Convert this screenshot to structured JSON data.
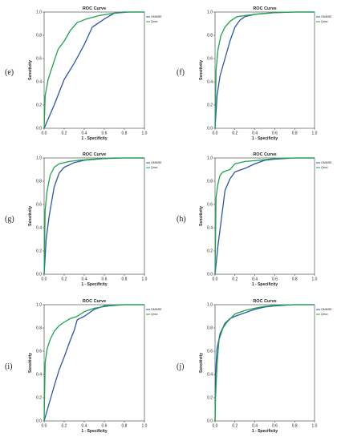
{
  "colors": {
    "series_1": "#2a56a8",
    "series_2": "#1aa34a",
    "axis": "#333333"
  },
  "chart_data": [
    {
      "panel": "(e)",
      "type": "line",
      "title": "ROC Curve",
      "xlabel": "1 - Specificity",
      "ylabel": "Sensitivity",
      "xlim": [
        0,
        1
      ],
      "ylim": [
        0,
        1
      ],
      "grid": false,
      "legend": "top-right",
      "xticks": [
        "0.0",
        "0.2",
        "0.4",
        "0.6",
        "0.8",
        "1.0"
      ],
      "yticks": [
        "0.0",
        "0.2",
        "0.4",
        "0.6",
        "0.8",
        "1.0"
      ],
      "series": [
        {
          "name": "GMMSE",
          "color": "#2a56a8",
          "points": [
            [
              0,
              0
            ],
            [
              0.1,
              0.2
            ],
            [
              0.2,
              0.42
            ],
            [
              0.3,
              0.56
            ],
            [
              0.4,
              0.72
            ],
            [
              0.48,
              0.87
            ],
            [
              0.6,
              0.94
            ],
            [
              0.7,
              0.99
            ],
            [
              0.8,
              1.0
            ],
            [
              1,
              1
            ]
          ]
        },
        {
          "name": "Qmci",
          "color": "#1aa34a",
          "points": [
            [
              0,
              0
            ],
            [
              0.01,
              0.28
            ],
            [
              0.04,
              0.42
            ],
            [
              0.07,
              0.5
            ],
            [
              0.1,
              0.58
            ],
            [
              0.14,
              0.68
            ],
            [
              0.2,
              0.75
            ],
            [
              0.26,
              0.84
            ],
            [
              0.33,
              0.91
            ],
            [
              0.42,
              0.94
            ],
            [
              0.55,
              0.97
            ],
            [
              0.7,
              0.99
            ],
            [
              0.85,
              1.0
            ],
            [
              1,
              1
            ]
          ]
        }
      ]
    },
    {
      "panel": "(f)",
      "type": "line",
      "title": "ROC Curve",
      "xlabel": "1 - Specificity",
      "ylabel": "Sensitivity",
      "xlim": [
        0,
        1
      ],
      "ylim": [
        0,
        1
      ],
      "grid": false,
      "legend": "top-right",
      "xticks": [
        "0.0",
        "0.2",
        "0.4",
        "0.6",
        "0.8",
        "1.0"
      ],
      "yticks": [
        "0.0",
        "0.2",
        "0.4",
        "0.6",
        "0.8",
        "1.0"
      ],
      "series": [
        {
          "name": "GMMSE",
          "color": "#2a56a8",
          "points": [
            [
              0,
              0
            ],
            [
              0.02,
              0.28
            ],
            [
              0.05,
              0.45
            ],
            [
              0.1,
              0.6
            ],
            [
              0.15,
              0.75
            ],
            [
              0.2,
              0.87
            ],
            [
              0.25,
              0.93
            ],
            [
              0.3,
              0.96
            ],
            [
              0.4,
              0.98
            ],
            [
              0.6,
              0.995
            ],
            [
              0.8,
              1.0
            ],
            [
              1,
              1
            ]
          ]
        },
        {
          "name": "Qmci",
          "color": "#1aa34a",
          "points": [
            [
              0,
              0
            ],
            [
              0.01,
              0.5
            ],
            [
              0.03,
              0.68
            ],
            [
              0.06,
              0.8
            ],
            [
              0.1,
              0.87
            ],
            [
              0.15,
              0.92
            ],
            [
              0.22,
              0.96
            ],
            [
              0.3,
              0.97
            ],
            [
              0.45,
              0.985
            ],
            [
              0.6,
              0.995
            ],
            [
              0.8,
              1.0
            ],
            [
              1,
              1
            ]
          ]
        }
      ]
    },
    {
      "panel": "(g)",
      "type": "line",
      "title": "ROC Curve",
      "xlabel": "1 - Specificity",
      "ylabel": "Sensitivity",
      "xlim": [
        0,
        1
      ],
      "ylim": [
        0,
        1
      ],
      "grid": false,
      "legend": "top-right",
      "xticks": [
        "0.0",
        "0.2",
        "0.4",
        "0.6",
        "0.8",
        "1.0"
      ],
      "yticks": [
        "0.0",
        "0.2",
        "0.4",
        "0.6",
        "0.8",
        "1.0"
      ],
      "series": [
        {
          "name": "GMMSE",
          "color": "#2a56a8",
          "points": [
            [
              0,
              0
            ],
            [
              0.02,
              0.3
            ],
            [
              0.05,
              0.5
            ],
            [
              0.1,
              0.75
            ],
            [
              0.15,
              0.87
            ],
            [
              0.2,
              0.92
            ],
            [
              0.3,
              0.96
            ],
            [
              0.4,
              0.98
            ],
            [
              0.6,
              0.995
            ],
            [
              0.8,
              1.0
            ],
            [
              1,
              1
            ]
          ]
        },
        {
          "name": "Qmci",
          "color": "#1aa34a",
          "points": [
            [
              0,
              0
            ],
            [
              0.01,
              0.55
            ],
            [
              0.03,
              0.72
            ],
            [
              0.06,
              0.85
            ],
            [
              0.1,
              0.92
            ],
            [
              0.15,
              0.95
            ],
            [
              0.25,
              0.97
            ],
            [
              0.35,
              0.98
            ],
            [
              0.5,
              0.99
            ],
            [
              0.7,
              1.0
            ],
            [
              1,
              1
            ]
          ]
        }
      ]
    },
    {
      "panel": "(h)",
      "type": "line",
      "title": "ROC Curve",
      "xlabel": "1 - Specificity",
      "ylabel": "Sensitivity",
      "xlim": [
        0,
        1
      ],
      "ylim": [
        0,
        1
      ],
      "grid": false,
      "legend": "top-right",
      "xticks": [
        "0.0",
        "0.2",
        "0.4",
        "0.6",
        "0.8",
        "1.0"
      ],
      "yticks": [
        "0.0",
        "0.2",
        "0.4",
        "0.6",
        "0.8",
        "1.0"
      ],
      "series": [
        {
          "name": "GMMSE",
          "color": "#2a56a8",
          "points": [
            [
              0,
              0
            ],
            [
              0.03,
              0.25
            ],
            [
              0.06,
              0.45
            ],
            [
              0.1,
              0.72
            ],
            [
              0.15,
              0.82
            ],
            [
              0.2,
              0.88
            ],
            [
              0.3,
              0.91
            ],
            [
              0.4,
              0.95
            ],
            [
              0.5,
              0.98
            ],
            [
              0.6,
              0.99
            ],
            [
              0.8,
              1.0
            ],
            [
              1,
              1
            ]
          ]
        },
        {
          "name": "Qmci",
          "color": "#1aa34a",
          "points": [
            [
              0,
              0
            ],
            [
              0.01,
              0.66
            ],
            [
              0.03,
              0.78
            ],
            [
              0.05,
              0.85
            ],
            [
              0.08,
              0.88
            ],
            [
              0.15,
              0.9
            ],
            [
              0.2,
              0.95
            ],
            [
              0.3,
              0.97
            ],
            [
              0.45,
              0.98
            ],
            [
              0.6,
              0.995
            ],
            [
              0.8,
              1.0
            ],
            [
              1,
              1
            ]
          ]
        }
      ]
    },
    {
      "panel": "(i)",
      "type": "line",
      "title": "ROC Curve",
      "xlabel": "1 - Specificity",
      "ylabel": "Sensitivity",
      "xlim": [
        0,
        1
      ],
      "ylim": [
        0,
        1
      ],
      "grid": false,
      "legend": "top-right",
      "xticks": [
        "0.0",
        "0.2",
        "0.4",
        "0.6",
        "0.8",
        "1.0"
      ],
      "yticks": [
        "0.0",
        "0.2",
        "0.4",
        "0.6",
        "0.8",
        "1.0"
      ],
      "series": [
        {
          "name": "GMMSE",
          "color": "#2a56a8",
          "points": [
            [
              0,
              0
            ],
            [
              0.05,
              0.15
            ],
            [
              0.1,
              0.3
            ],
            [
              0.15,
              0.44
            ],
            [
              0.2,
              0.55
            ],
            [
              0.25,
              0.67
            ],
            [
              0.3,
              0.78
            ],
            [
              0.33,
              0.87
            ],
            [
              0.4,
              0.9
            ],
            [
              0.5,
              0.96
            ],
            [
              0.6,
              0.99
            ],
            [
              0.8,
              1.0
            ],
            [
              1,
              1
            ]
          ]
        },
        {
          "name": "Qmci",
          "color": "#1aa34a",
          "points": [
            [
              0,
              0
            ],
            [
              0.01,
              0.5
            ],
            [
              0.03,
              0.62
            ],
            [
              0.06,
              0.7
            ],
            [
              0.1,
              0.77
            ],
            [
              0.15,
              0.82
            ],
            [
              0.2,
              0.85
            ],
            [
              0.26,
              0.88
            ],
            [
              0.33,
              0.9
            ],
            [
              0.4,
              0.94
            ],
            [
              0.5,
              0.97
            ],
            [
              0.65,
              0.99
            ],
            [
              0.8,
              1.0
            ],
            [
              1,
              1
            ]
          ]
        }
      ]
    },
    {
      "panel": "(j)",
      "type": "line",
      "title": "ROC Curve",
      "xlabel": "1 - Specificity",
      "ylabel": "Sensitivity",
      "xlim": [
        0,
        1
      ],
      "ylim": [
        0,
        1
      ],
      "grid": false,
      "legend": "top-right",
      "xticks": [
        "0.0",
        "0.2",
        "0.4",
        "0.6",
        "0.8",
        "1.0"
      ],
      "yticks": [
        "0.0",
        "0.2",
        "0.4",
        "0.6",
        "0.8",
        "1.0"
      ],
      "series": [
        {
          "name": "GMMSE",
          "color": "#2a56a8",
          "points": [
            [
              0,
              0
            ],
            [
              0.005,
              0.4
            ],
            [
              0.02,
              0.62
            ],
            [
              0.05,
              0.75
            ],
            [
              0.1,
              0.84
            ],
            [
              0.15,
              0.88
            ],
            [
              0.2,
              0.9
            ],
            [
              0.3,
              0.93
            ],
            [
              0.4,
              0.96
            ],
            [
              0.5,
              0.98
            ],
            [
              0.6,
              0.99
            ],
            [
              0.8,
              1.0
            ],
            [
              1,
              1
            ]
          ]
        },
        {
          "name": "Qmci",
          "color": "#1aa34a",
          "points": [
            [
              0,
              0
            ],
            [
              0.005,
              0.2
            ],
            [
              0.02,
              0.48
            ],
            [
              0.04,
              0.7
            ],
            [
              0.08,
              0.8
            ],
            [
              0.12,
              0.85
            ],
            [
              0.2,
              0.92
            ],
            [
              0.3,
              0.95
            ],
            [
              0.4,
              0.97
            ],
            [
              0.5,
              0.985
            ],
            [
              0.6,
              0.995
            ],
            [
              0.8,
              1.0
            ],
            [
              1,
              1
            ]
          ]
        }
      ]
    }
  ]
}
